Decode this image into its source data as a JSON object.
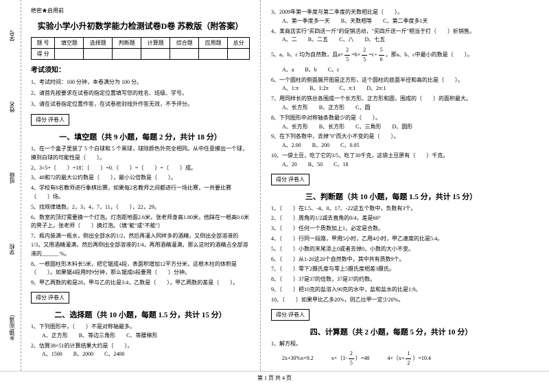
{
  "binding": {
    "labels": [
      "学号",
      "姓名",
      "班级",
      "学校",
      "乡镇(街道)"
    ],
    "marks": [
      "题",
      "答",
      "准",
      "不",
      "内",
      "线",
      "封",
      "密"
    ]
  },
  "header": {
    "secret": "绝密★启用前",
    "title": "实验小学小升初数学能力检测试卷D卷 苏教版（附答案）"
  },
  "scoreTable": {
    "row1": [
      "题 号",
      "填空题",
      "选择题",
      "判断题",
      "计算题",
      "综合题",
      "应用题",
      "总分"
    ],
    "row2": [
      "得 分",
      "",
      "",
      "",
      "",
      "",
      "",
      ""
    ]
  },
  "notice": {
    "title": "考试须知：",
    "items": [
      "1、考试时间：100 分钟，本卷满分为 100 分。",
      "2、请首先按要求在试卷的指定位置填写您的姓名、班级、学号。",
      "3、请在试卷指定位置作答，在试卷密封线外作答无效，不予评分。"
    ]
  },
  "reviewerLabel": "得分  评卷人",
  "sections": {
    "s1": {
      "title": "一、填空题（共 9 小题，每题 2 分，共计 18 分）",
      "q1": "1、在一个盒子里装了 5 个白球和 5 个黑球，球除颜色外完全相同。从中任意摸出一个球，摸到白球的可能性是（　　）。",
      "q2": "2、3÷5=（　　）=18：（　　）=0.（　　）=（　　）=（　　）成。",
      "q3": "3、48和72的最大公约数是（　　），最小公倍数是（　　）。",
      "q4": "4、学校有8名教师进行象棋比赛，如果每2名教师之间都进行一场比赛，一共要比赛（　　）场。",
      "q5": "5、找规律填数。2，3，4，7，11，（　　），22，29。",
      "q6": "6、数室的顶灯需要换一个灯泡。灯泡距地面2.6米，张老师身高1.80米，他踩在一根高0.6米的凳子上。张老师（　　）换灯泡。（填\"能\"或\"不能\"）",
      "q7": "7、瓶内装满一瓶水，倒出全部水的1/2，然后再灌入同样多的酒精，又倒出全部溶液的1/3，又用酒精灌满，然后再倒出全部溶液的1/4，再用酒精灌满，那么这时的酒精占全部溶液的______ %。",
      "q8": "8、一根圆柱形木料长5米，把它锯成4段，表面积增加12平方分米，这根木柱的体积是（　　）。如果锯4段用时9分钟，那么锯成6段要用（　　）分钟。",
      "q9": "9、甲乙两数的和是28，甲与乙的比是3:4，乙数是（　　），甲乙两数的差是（　　）。"
    },
    "s2": {
      "title": "二、选择题（共 10 小题，每题 1.5 分，共计 15 分）",
      "q1": "1、下列图形中，（　　）不是对称轴最多。\n　　A、正方形　　B、等边三角形　　C、等腰梯形",
      "q2": "2、估算38×51的计算结果大约是（　　）。\n　　A、1500　　B、2000　　C、2400",
      "q3": "3、2009年第一季度与第二季度的天数相比是（　　）。\n　　A、第一季度多一天　　B、天数相等　　C、第二季度多1天",
      "q4": "4、某商店实行\"买四送一斤\"的促销活动，\"买四斤送一斤\"相当于打（　　）折销售。\n　　A、二　　B、二五　　C、八　　D、七五",
      "q5a": "5、a、b、c 均为自然数，且a×",
      "q5b": "=b×",
      "q5c": "=c÷",
      "q5d": "，那a、b、c中最小的数是（　　）。",
      "q5opts": "　　A、a　　B、b　　C、c",
      "q6": "6、一个圆柱的侧面展开图是正方形，这个圆柱的底面半径和高的比是（　　）。\n　　A、1:π　　B、1:2π　　C、π:1　　D、2π:1",
      "q7": "7、用同样长的铁丝各围成一个长方形、正方形和圆，围成的（　　）的面积最大。\n　　A、长方形　　B、正方形　　C、圆",
      "q8": "8、下列图形中对称轴条数最少的是（　　）。\n　　A、长方形　　B、长方形　　C、三角形　　D、圆形",
      "q9": "9、在下列各数中，去掉\"0\"而大小不变的是（　　）。\n　　A、2.00　　B、200　　C、0.05",
      "q10": "10、一袋土豆，吃了它的3/5，吃了30千克，这袋土豆原有（　　）千克。\n　　A、20　　B、50　　C、18"
    },
    "s3": {
      "title": "三、判断题（共 10 小题，每题 1.5 分，共计 15 分）",
      "q1": "1、（　　）在1.5、-4、0、17、-22这五个数中，负数有3个。",
      "q2": "2、（　　）周角的1/2减去直角的0/4，差是60°",
      "q3": "3、（　　）任何一个质数加上1，必定是合数。",
      "q4": "4、（　　）行同一段路，甲用5小时，乙用4小时，甲乙速度的比是5:4。",
      "q5": "5、（　　）小数的末尾添上0或者去掉0，小数的大小不变。",
      "q6": "6、（　　）从1-20这20个自然数中，其中共有质数9个。",
      "q7": "7、（　　）零下2摄氏度与零上5摄氏度相差3摄氏。",
      "q8": "8、（　　）37是37的倍数，37是37的约数。",
      "q9": "9、（　　）把10克的盐溶入90克的水中，盐和盐水的比是1:9。",
      "q10": "10、（　　）如果甲比乙多20%，则乙比甲一定少20%。"
    },
    "s4": {
      "title": "四、计算题（共 2 小题，每题 5 分，共计 10 分）",
      "q1": "1、解方程。",
      "eq1": "2x+30%x=9.2",
      "eq2a": "x×（1-",
      "eq2b": "）=48",
      "eq3a": "4×（x+",
      "eq3b": "）=10.4"
    }
  },
  "fractions": {
    "f1": {
      "n": "2",
      "d": "5"
    },
    "f2": {
      "n": "2",
      "d": "5"
    },
    "f3": {
      "n": "5",
      "d": "6"
    },
    "f4": {
      "n": "2",
      "d": "5"
    },
    "f5": {
      "n": "1",
      "d": "2"
    }
  },
  "footer": "第 1 页 共 4 页",
  "colors": {
    "text": "#000000",
    "bg": "#ffffff",
    "dash": "#999999"
  }
}
